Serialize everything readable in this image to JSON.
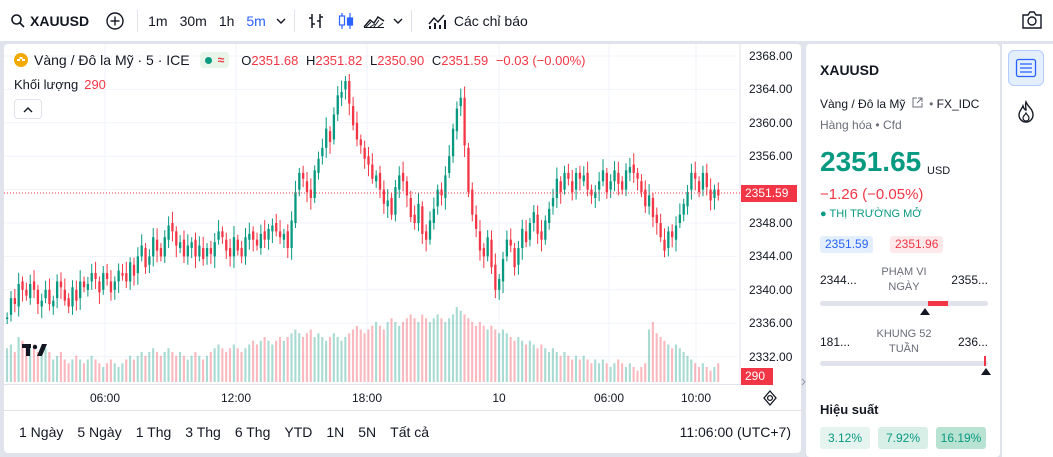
{
  "toolbar": {
    "symbol": "XAUUSD",
    "timeframes": [
      "1m",
      "30m",
      "1h",
      "5m"
    ],
    "active_timeframe": "5m",
    "indicators_label": "Các chỉ báo"
  },
  "legend": {
    "title": "Vàng / Đô la Mỹ · 5 · ICE",
    "open_label": "O",
    "open": "2351.68",
    "high_label": "H",
    "high": "2351.82",
    "low_label": "L",
    "low": "2350.90",
    "close_label": "C",
    "close": "2351.59",
    "change": "−0.03 (−0.00%)",
    "volume_label": "Khối lượng",
    "volume": "290"
  },
  "price_axis": {
    "ticks": [
      "2368.00",
      "2364.00",
      "2360.00",
      "2356.00",
      "2352.00",
      "2348.00",
      "2344.00",
      "2340.00",
      "2336.00",
      "2332.00"
    ],
    "current_price": "2351.59",
    "current_volume": "290"
  },
  "time_axis": {
    "ticks": [
      "06:00",
      "12:00",
      "18:00",
      "10",
      "06:00",
      "10:00"
    ]
  },
  "range_bar": {
    "ranges": [
      "1 Ngày",
      "5 Ngày",
      "1 Thg",
      "3 Thg",
      "6 Thg",
      "YTD",
      "1N",
      "5N",
      "Tất cả"
    ],
    "clock": "11:06:00 (UTC+7)"
  },
  "details": {
    "symbol": "XAUUSD",
    "description": "Vàng / Đô la Mỹ",
    "exchange": "FX_IDC",
    "category": "Hàng hóa",
    "type": "Cfd",
    "price": "2351.65",
    "currency": "USD",
    "change": "−1.26 (−0.05%)",
    "market_status": "THỊ TRƯỜNG MỞ",
    "bid": "2351.59",
    "ask": "2351.96",
    "day_range": {
      "low": "2344...",
      "label": "PHẠM VI NGÀY",
      "high": "2355..."
    },
    "week52_range": {
      "low": "181...",
      "label": "KHUNG 52 TUẦN",
      "high": "236..."
    },
    "performance_title": "Hiệu suất",
    "performance": [
      "3.12%",
      "7.92%",
      "16.19%"
    ]
  },
  "colors": {
    "up": "#089981",
    "down": "#f23645",
    "accent": "#2962ff"
  },
  "chart_data": {
    "type": "candlestick",
    "ylim": [
      2330,
      2369
    ],
    "close_series": [
      2337,
      2339,
      2338,
      2341,
      2340,
      2339,
      2341,
      2340,
      2338,
      2339,
      2340,
      2338,
      2339,
      2341,
      2340,
      2339,
      2338,
      2340,
      2339,
      2341,
      2340,
      2341,
      2342,
      2341,
      2340,
      2342,
      2341,
      2340,
      2341,
      2342,
      2342,
      2341,
      2343,
      2342,
      2344,
      2345,
      2343,
      2344,
      2346,
      2345,
      2344,
      2346,
      2348,
      2347,
      2345,
      2346,
      2344,
      2345,
      2346,
      2344,
      2345,
      2344,
      2345,
      2344,
      2346,
      2347,
      2346,
      2345,
      2344,
      2346,
      2345,
      2344,
      2346,
      2347,
      2346,
      2345,
      2347,
      2346,
      2347,
      2348,
      2347,
      2346,
      2347,
      2345,
      2348,
      2352,
      2354,
      2353,
      2352,
      2351,
      2354,
      2356,
      2357,
      2359,
      2358,
      2361,
      2363,
      2364,
      2365,
      2362,
      2360,
      2358,
      2357,
      2356,
      2355,
      2353,
      2354,
      2352,
      2350,
      2351,
      2349,
      2352,
      2354,
      2353,
      2351,
      2349,
      2348,
      2350,
      2347,
      2346,
      2348,
      2350,
      2352,
      2351,
      2354,
      2356,
      2359,
      2362,
      2363,
      2357,
      2352,
      2349,
      2347,
      2345,
      2344,
      2346,
      2343,
      2340,
      2341,
      2344,
      2346,
      2345,
      2343,
      2345,
      2347,
      2346,
      2348,
      2349,
      2347,
      2346,
      2348,
      2350,
      2351,
      2353,
      2352,
      2354,
      2353,
      2352,
      2354,
      2353,
      2354,
      2352,
      2351,
      2352,
      2353,
      2354,
      2352,
      2353,
      2354,
      2353,
      2352,
      2354,
      2355,
      2354,
      2353,
      2352,
      2350,
      2351,
      2349,
      2348,
      2346,
      2345,
      2347,
      2346,
      2348,
      2349,
      2350,
      2352,
      2354,
      2353,
      2352,
      2354,
      2352,
      2351,
      2352,
      2351
    ],
    "volume_relative": [
      0.45,
      0.5,
      0.4,
      0.6,
      0.55,
      0.5,
      0.45,
      0.5,
      0.4,
      0.35,
      0.45,
      0.4,
      0.3,
      0.35,
      0.4,
      0.3,
      0.25,
      0.3,
      0.35,
      0.3,
      0.25,
      0.3,
      0.35,
      0.3,
      0.25,
      0.2,
      0.25,
      0.3,
      0.25,
      0.2,
      0.25,
      0.3,
      0.35,
      0.3,
      0.35,
      0.4,
      0.35,
      0.4,
      0.45,
      0.4,
      0.35,
      0.4,
      0.45,
      0.4,
      0.35,
      0.4,
      0.35,
      0.3,
      0.35,
      0.4,
      0.35,
      0.3,
      0.35,
      0.4,
      0.45,
      0.5,
      0.45,
      0.4,
      0.45,
      0.5,
      0.45,
      0.4,
      0.45,
      0.5,
      0.55,
      0.5,
      0.55,
      0.6,
      0.55,
      0.5,
      0.55,
      0.6,
      0.55,
      0.6,
      0.65,
      0.7,
      0.65,
      0.6,
      0.65,
      0.7,
      0.6,
      0.65,
      0.6,
      0.55,
      0.6,
      0.65,
      0.6,
      0.55,
      0.6,
      0.65,
      0.7,
      0.75,
      0.7,
      0.65,
      0.7,
      0.75,
      0.8,
      0.75,
      0.7,
      0.8,
      0.85,
      0.8,
      0.75,
      0.8,
      0.85,
      0.9,
      0.85,
      0.8,
      0.9,
      0.85,
      0.8,
      0.85,
      0.9,
      0.85,
      0.8,
      0.85,
      0.9,
      1.0,
      0.95,
      0.9,
      0.85,
      0.8,
      0.75,
      0.8,
      0.75,
      0.7,
      0.75,
      0.7,
      0.65,
      0.7,
      0.65,
      0.6,
      0.55,
      0.6,
      0.55,
      0.5,
      0.55,
      0.5,
      0.45,
      0.5,
      0.45,
      0.4,
      0.45,
      0.4,
      0.35,
      0.4,
      0.35,
      0.3,
      0.35,
      0.3,
      0.35,
      0.3,
      0.25,
      0.3,
      0.25,
      0.3,
      0.25,
      0.2,
      0.25,
      0.3,
      0.25,
      0.2,
      0.25,
      0.2,
      0.15,
      0.2,
      0.25,
      0.7,
      0.8,
      0.65,
      0.6,
      0.55,
      0.5,
      0.45,
      0.5,
      0.45,
      0.4,
      0.35,
      0.3,
      0.25,
      0.2,
      0.25,
      0.2,
      0.15,
      0.2,
      0.25,
      0.2,
      0.15
    ]
  }
}
